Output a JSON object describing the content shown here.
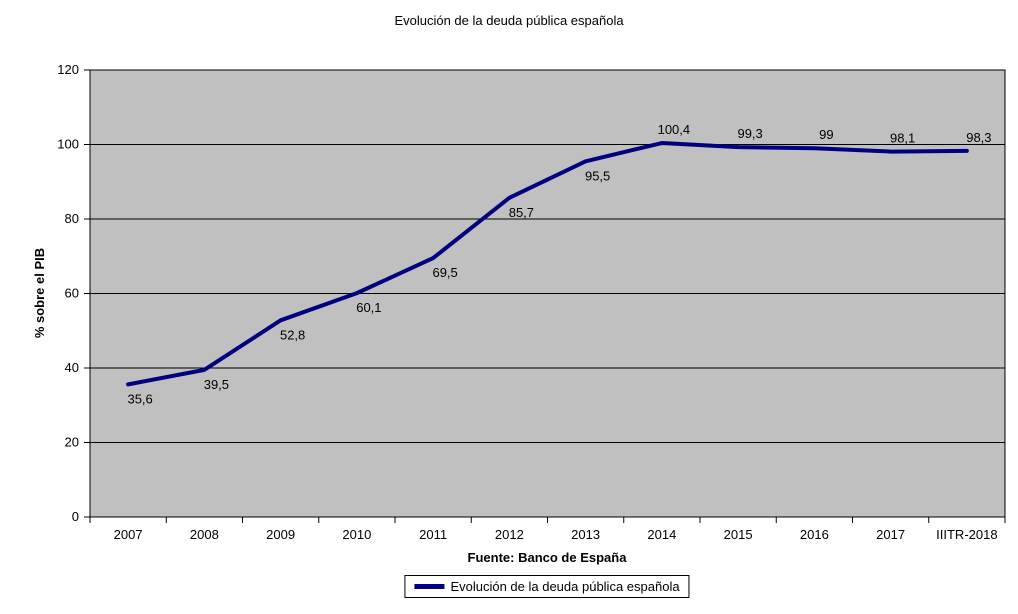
{
  "chart_data": {
    "type": "line",
    "title": "Evolución de la deuda pública española",
    "ylabel": "% sobre el PIB",
    "xlabel": "Fuente: Banco de España",
    "legend": [
      "Evolución de la deuda pública española"
    ],
    "legend_position": "bottom",
    "grid": true,
    "ylim": [
      0,
      120
    ],
    "ytick_step": 20,
    "categories": [
      "2007",
      "2008",
      "2009",
      "2010",
      "2011",
      "2012",
      "2013",
      "2014",
      "2015",
      "2016",
      "2017",
      "IIITR-2018"
    ],
    "values": [
      35.6,
      39.5,
      52.8,
      60.1,
      69.5,
      85.7,
      95.5,
      100.4,
      99.3,
      99,
      98.1,
      98.3
    ],
    "value_labels": [
      "35,6",
      "39,5",
      "52,8",
      "60,1",
      "69,5",
      "85,7",
      "95,5",
      "100,4",
      "99,3",
      "99",
      "98,1",
      "98,3"
    ],
    "colors": {
      "line": "#000080",
      "plot_bg": "#c0c0c0",
      "grid": "#000000",
      "axis": "#000000"
    }
  }
}
